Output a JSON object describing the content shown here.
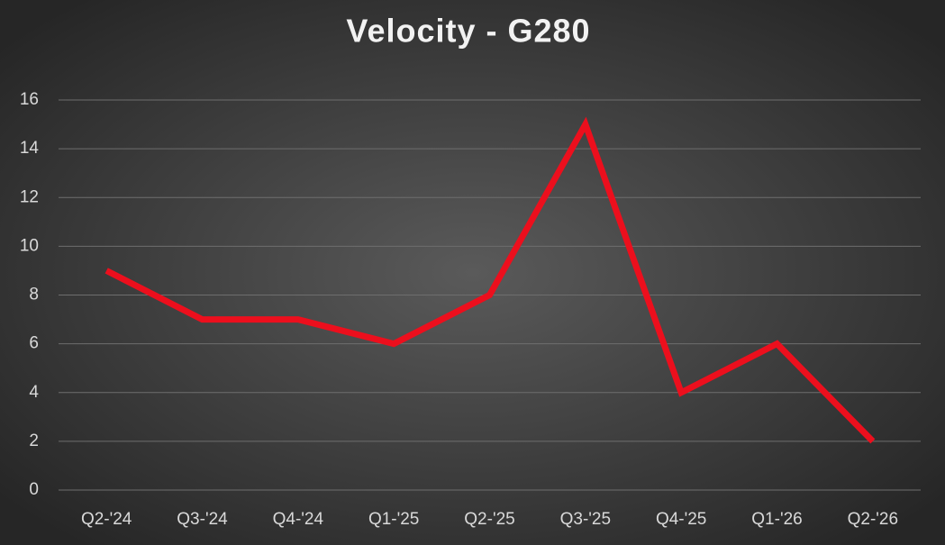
{
  "chart_data": {
    "type": "line",
    "title": "Velocity - G280",
    "categories": [
      "Q2-'24",
      "Q3-'24",
      "Q4-'24",
      "Q1-'25",
      "Q2-'25",
      "Q3-'25",
      "Q4-'25",
      "Q1-'26",
      "Q2-'26"
    ],
    "values": [
      9,
      7,
      7,
      6,
      8,
      15,
      4,
      6,
      2
    ],
    "color": "#ec0f1d",
    "ylim": [
      0,
      16
    ],
    "yticks": [
      0,
      2,
      4,
      6,
      8,
      10,
      12,
      14,
      16
    ],
    "grid": true
  }
}
